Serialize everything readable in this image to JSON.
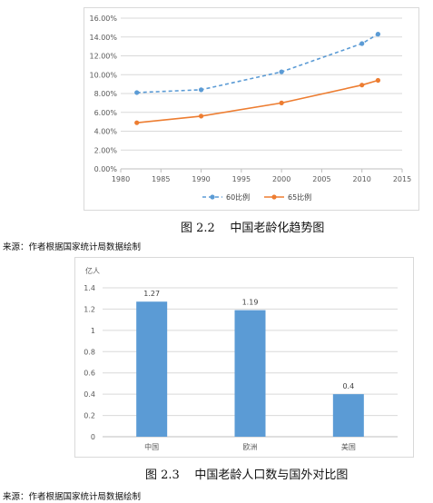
{
  "colors": {
    "series60": "#5b9bd5",
    "series65": "#ed7d31",
    "bar": "#5b9bd5",
    "grid": "#d9d9d9",
    "axis_text": "#595959"
  },
  "figure1": {
    "caption": "图 2.2    中国老龄化趋势图",
    "source": "来源：作者根据国家统计局数据绘制"
  },
  "figure2": {
    "caption": "图 2.3    中国老龄人口数与国外对比图",
    "source": "来源：作者根据国家统计局数据绘制"
  },
  "chart_data": [
    {
      "type": "scatter",
      "title": "",
      "xlabel": "",
      "ylabel": "",
      "xlim": [
        1980,
        2015
      ],
      "ylim": [
        0,
        16
      ],
      "x_ticks": [
        "1980",
        "1985",
        "1990",
        "1995",
        "2000",
        "2005",
        "2010",
        "2015"
      ],
      "y_ticks": [
        "0.00%",
        "2.00%",
        "4.00%",
        "6.00%",
        "8.00%",
        "10.00%",
        "12.00%",
        "14.00%",
        "16.00%"
      ],
      "grid": true,
      "legend": "bottom",
      "series": [
        {
          "name": "60比例",
          "style": "dashed",
          "color": "#5b9bd5",
          "x": [
            1982,
            1990,
            2000,
            2010,
            2012
          ],
          "values": [
            8.1,
            8.4,
            10.3,
            13.3,
            14.3
          ]
        },
        {
          "name": "65比例",
          "style": "solid",
          "color": "#ed7d31",
          "x": [
            1982,
            1990,
            2000,
            2010,
            2012
          ],
          "values": [
            4.9,
            5.6,
            7.0,
            8.9,
            9.4
          ]
        }
      ]
    },
    {
      "type": "bar",
      "title": "",
      "xlabel": "",
      "ylabel": "亿人",
      "ylim": [
        0,
        1.4
      ],
      "y_ticks": [
        "0",
        "0.2",
        "0.4",
        "0.6",
        "0.8",
        "1",
        "1.2",
        "1.4"
      ],
      "grid": true,
      "categories": [
        "中国",
        "欧洲",
        "美国"
      ],
      "values": [
        1.27,
        1.19,
        0.4
      ],
      "data_labels": [
        "1.27",
        "1.19",
        "0.4"
      ],
      "color": "#5b9bd5"
    }
  ]
}
